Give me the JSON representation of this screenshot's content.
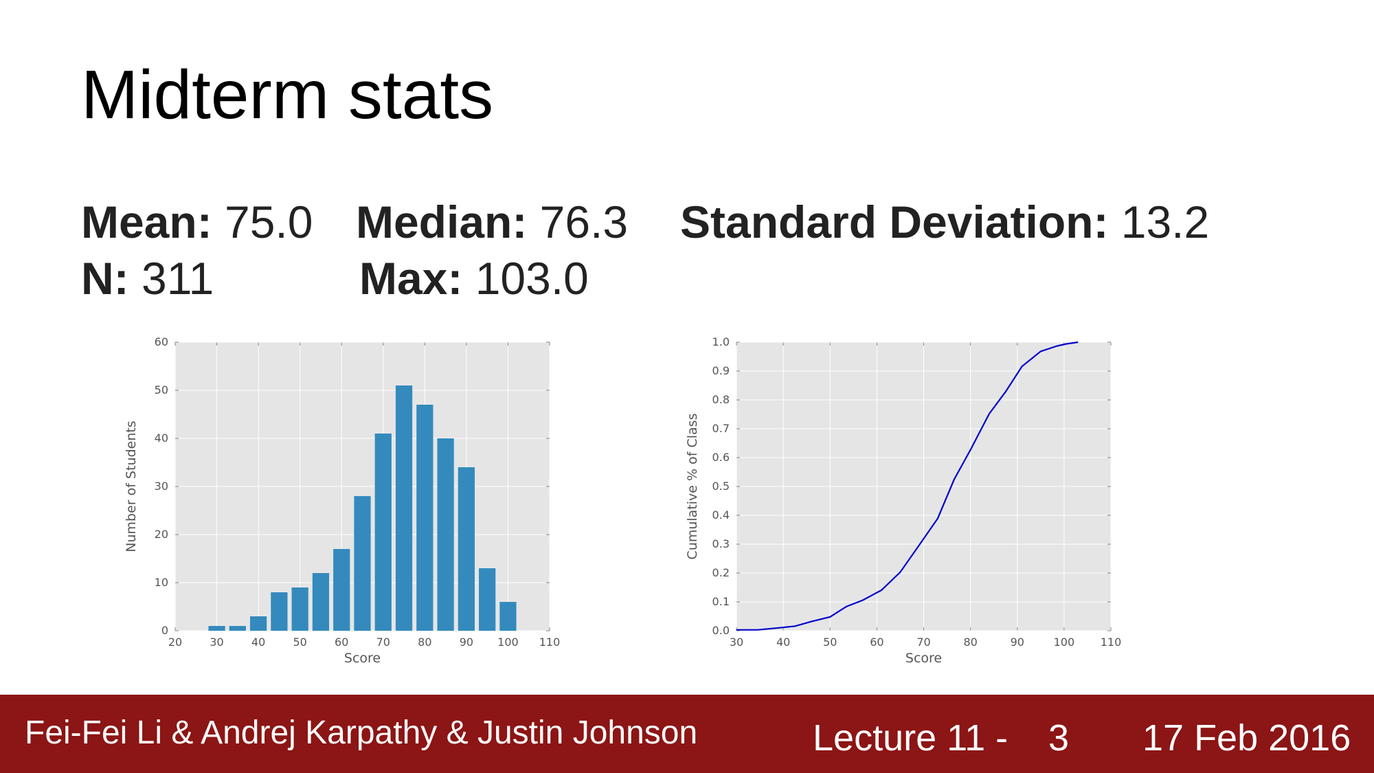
{
  "slide": {
    "title": "Midterm stats",
    "stats": {
      "mean_label": "Mean:",
      "mean_value": " 75.0",
      "median_label": "Median:",
      "median_value": " 76.3",
      "sd_label": "Standard Deviation:",
      "sd_value": " 13.2",
      "n_label": "N:",
      "n_value": " 311",
      "max_label": "Max:",
      "max_value": " 103.0"
    }
  },
  "footer": {
    "authors": "Fei-Fei Li & Andrej Karpathy & Justin Johnson",
    "lecture": "Lecture 11 -",
    "page": "3",
    "date": "17 Feb 2016"
  },
  "chart_data": [
    {
      "type": "bar",
      "x": [
        30,
        35,
        40,
        45,
        50,
        55,
        60,
        65,
        70,
        75,
        80,
        85,
        90,
        95,
        100
      ],
      "values": [
        1,
        1,
        3,
        8,
        9,
        12,
        17,
        28,
        41,
        51,
        47,
        40,
        34,
        13,
        6
      ],
      "xlabel": "Score",
      "ylabel": "Number of Students",
      "xlim": [
        20,
        110
      ],
      "ylim": [
        0,
        60
      ],
      "xticks": [
        20,
        30,
        40,
        50,
        60,
        70,
        80,
        90,
        100,
        110
      ],
      "yticks": [
        0,
        10,
        20,
        30,
        40,
        50,
        60
      ],
      "grid": true,
      "colors": {
        "bar": "#348abd",
        "background": "#e5e5e5",
        "grid": "#ffffff",
        "text": "#555555"
      }
    },
    {
      "type": "line",
      "x": [
        30,
        34.5,
        39,
        42.5,
        46,
        50,
        53.5,
        57,
        61,
        65,
        69,
        73,
        76.5,
        80,
        84,
        87.5,
        91,
        95,
        98.5,
        100.5,
        103
      ],
      "y": [
        0.003,
        0.003,
        0.01,
        0.016,
        0.032,
        0.048,
        0.084,
        0.106,
        0.141,
        0.203,
        0.296,
        0.389,
        0.524,
        0.627,
        0.752,
        0.828,
        0.916,
        0.968,
        0.987,
        0.994,
        1.0
      ],
      "xlabel": "Score",
      "ylabel": "Cumulative % of Class",
      "xlim": [
        30,
        110
      ],
      "ylim": [
        0,
        1.0
      ],
      "xticks": [
        30,
        40,
        50,
        60,
        70,
        80,
        90,
        100,
        110
      ],
      "yticks": [
        "0.0",
        "0.1",
        "0.2",
        "0.3",
        "0.4",
        "0.5",
        "0.6",
        "0.7",
        "0.8",
        "0.9",
        "1.0"
      ],
      "grid": true,
      "colors": {
        "line": "#0000cc",
        "background": "#e5e5e5",
        "grid": "#ffffff",
        "text": "#555555"
      }
    }
  ]
}
